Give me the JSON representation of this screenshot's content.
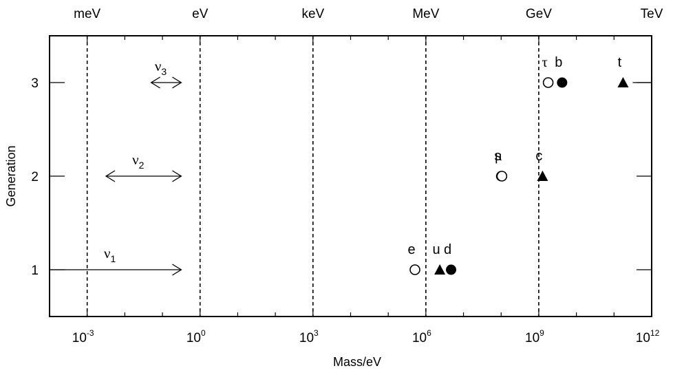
{
  "chart_data": {
    "type": "scatter",
    "xlabel": "Mass/eV",
    "ylabel": "Generation",
    "x_scale": "log10",
    "xlim_exponent": [
      -4,
      12
    ],
    "ylim": [
      0.5,
      3.5
    ],
    "grid": "dashed vertical lines at energy unit boundaries",
    "x_ticks": [
      {
        "base": "10",
        "exp": "-3",
        "value_exp": -3
      },
      {
        "base": "10",
        "exp": "0",
        "value_exp": 0
      },
      {
        "base": "10",
        "exp": "3",
        "value_exp": 3
      },
      {
        "base": "10",
        "exp": "6",
        "value_exp": 6
      },
      {
        "base": "10",
        "exp": "9",
        "value_exp": 9
      },
      {
        "base": "10",
        "exp": "12",
        "value_exp": 12
      }
    ],
    "y_ticks": [
      "1",
      "2",
      "3"
    ],
    "energy_units": [
      {
        "label": "meV",
        "value_exp": -3
      },
      {
        "label": "eV",
        "value_exp": 0
      },
      {
        "label": "keV",
        "value_exp": 3
      },
      {
        "label": "MeV",
        "value_exp": 6
      },
      {
        "label": "GeV",
        "value_exp": 9
      },
      {
        "label": "TeV",
        "value_exp": 12
      }
    ],
    "particles": [
      {
        "name": "e",
        "mass_log10": 5.71,
        "generation": 1,
        "marker": "open-circle"
      },
      {
        "name": "u",
        "mass_log10": 6.37,
        "generation": 1,
        "marker": "triangle"
      },
      {
        "name": "d",
        "mass_log10": 6.67,
        "generation": 1,
        "marker": "filled-circle"
      },
      {
        "name": "s",
        "mass_log10": 8.0,
        "generation": 2,
        "marker": "filled-circle"
      },
      {
        "name": "μ",
        "mass_log10": 8.02,
        "generation": 2,
        "marker": "open-circle"
      },
      {
        "name": "c",
        "mass_log10": 9.1,
        "generation": 2,
        "marker": "triangle"
      },
      {
        "name": "τ",
        "mass_log10": 9.25,
        "generation": 3,
        "marker": "open-circle"
      },
      {
        "name": "b",
        "mass_log10": 9.62,
        "generation": 3,
        "marker": "filled-circle"
      },
      {
        "name": "t",
        "mass_log10": 11.24,
        "generation": 3,
        "marker": "triangle"
      }
    ],
    "neutrinos": [
      {
        "name": "ν",
        "sub": "1",
        "generation": 1,
        "from_log10": -4,
        "to_log10": -0.5,
        "arrow": "right"
      },
      {
        "name": "ν",
        "sub": "2",
        "generation": 2,
        "from_log10": -2.5,
        "to_log10": -0.5,
        "arrow": "both"
      },
      {
        "name": "ν",
        "sub": "3",
        "generation": 3,
        "from_log10": -1.3,
        "to_log10": -0.5,
        "arrow": "both"
      }
    ]
  }
}
